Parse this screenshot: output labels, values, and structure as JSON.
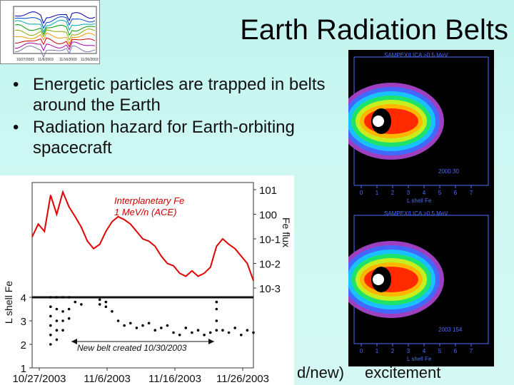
{
  "slide": {
    "title": "Earth Radiation Belts",
    "bullets": [
      "Energetic particles are trapped in belts around the Earth",
      "Radiation hazard for Earth-orbiting spacecraft"
    ],
    "bottom_left_fragment": "d/new)",
    "bottom_right_text": "excitement"
  },
  "top_left_thumbnail": {
    "x_labels": [
      "10/27/2003",
      "11/6/2003",
      "11/16/2003",
      "11/26/2003"
    ]
  },
  "right_panels": {
    "top": {
      "header": "SAMPEX/LICA >0.5 MeV",
      "footer": "2000  30",
      "x_label": "L shell  Fe"
    },
    "bottom": {
      "header": "SAMPEX/LICA >0.5 MeV",
      "footer": "2003  154",
      "x_label": "L shell  Fe"
    }
  },
  "chart_data": {
    "type": "line",
    "x_dates": [
      "10/27/2003",
      "11/6/2003",
      "11/16/2003",
      "11/26/2003"
    ],
    "x_range": [
      "10/27/2003",
      "12/2/2003"
    ],
    "left_axis": {
      "label": "L shell Fe",
      "ticks": [
        1,
        2,
        3,
        4
      ],
      "range": [
        1,
        4
      ]
    },
    "right_axis": {
      "label": "Fe flux",
      "ticks": [
        "10^1",
        "10^0",
        "10^-1",
        "10^-2",
        "10^-3"
      ],
      "range": [
        0.001,
        10.0
      ],
      "scale": "log"
    },
    "annotations": {
      "fe_label": "Interplanetary Fe",
      "fe_sub": "1 MeV/n (ACE)",
      "belt_label": "New belt created 10/30/2003"
    },
    "fe_series": {
      "name": "Interplanetary Fe",
      "color": "#e00000",
      "points": [
        [
          0,
          0.12
        ],
        [
          1,
          0.4
        ],
        [
          2,
          0.2
        ],
        [
          3,
          6
        ],
        [
          4,
          1
        ],
        [
          5,
          8
        ],
        [
          6,
          2
        ],
        [
          7,
          0.8
        ],
        [
          8,
          0.3
        ],
        [
          9,
          0.08
        ],
        [
          10,
          0.04
        ],
        [
          11,
          0.06
        ],
        [
          12,
          0.2
        ],
        [
          13,
          0.5
        ],
        [
          14,
          0.8
        ],
        [
          15,
          0.6
        ],
        [
          16,
          0.4
        ],
        [
          17,
          0.2
        ],
        [
          18,
          0.1
        ],
        [
          19,
          0.08
        ],
        [
          20,
          0.05
        ],
        [
          21,
          0.02
        ],
        [
          22,
          0.01
        ],
        [
          23,
          0.008
        ],
        [
          24,
          0.004
        ],
        [
          25,
          0.003
        ],
        [
          26,
          0.005
        ],
        [
          27,
          0.003
        ],
        [
          28,
          0.004
        ],
        [
          29,
          0.007
        ],
        [
          30,
          0.05
        ],
        [
          31,
          0.1
        ],
        [
          32,
          0.06
        ],
        [
          33,
          0.04
        ],
        [
          34,
          0.02
        ],
        [
          35,
          0.01
        ],
        [
          36,
          0.002
        ]
      ]
    },
    "belt_points": [
      [
        3,
        4.0
      ],
      [
        3,
        3.6
      ],
      [
        3,
        3.2
      ],
      [
        3,
        2.8
      ],
      [
        3,
        2.4
      ],
      [
        3,
        2.0
      ],
      [
        4,
        4.0
      ],
      [
        4,
        3.5
      ],
      [
        4,
        3.0
      ],
      [
        4,
        2.6
      ],
      [
        4,
        2.2
      ],
      [
        5,
        4.0
      ],
      [
        5,
        3.4
      ],
      [
        5,
        3.0
      ],
      [
        5,
        2.6
      ],
      [
        6,
        4.0
      ],
      [
        6,
        3.5
      ],
      [
        6,
        3.1
      ],
      [
        7,
        3.8
      ],
      [
        8,
        3.7
      ],
      [
        11,
        3.9
      ],
      [
        11,
        3.7
      ],
      [
        12,
        3.8
      ],
      [
        12,
        3.6
      ],
      [
        13,
        3.4
      ],
      [
        14,
        3.0
      ],
      [
        15,
        2.8
      ],
      [
        16,
        2.9
      ],
      [
        17,
        2.7
      ],
      [
        18,
        2.8
      ],
      [
        19,
        2.9
      ],
      [
        20,
        2.6
      ],
      [
        21,
        2.7
      ],
      [
        22,
        2.8
      ],
      [
        23,
        2.5
      ],
      [
        24,
        2.4
      ],
      [
        25,
        2.7
      ],
      [
        26,
        2.5
      ],
      [
        27,
        2.6
      ],
      [
        28,
        2.4
      ],
      [
        29,
        2.5
      ],
      [
        30,
        3.8
      ],
      [
        30,
        3.5
      ],
      [
        30,
        3.0
      ],
      [
        30,
        2.6
      ],
      [
        31,
        2.6
      ],
      [
        32,
        2.5
      ],
      [
        33,
        2.7
      ],
      [
        34,
        2.4
      ],
      [
        35,
        2.6
      ],
      [
        36,
        2.5
      ]
    ]
  }
}
